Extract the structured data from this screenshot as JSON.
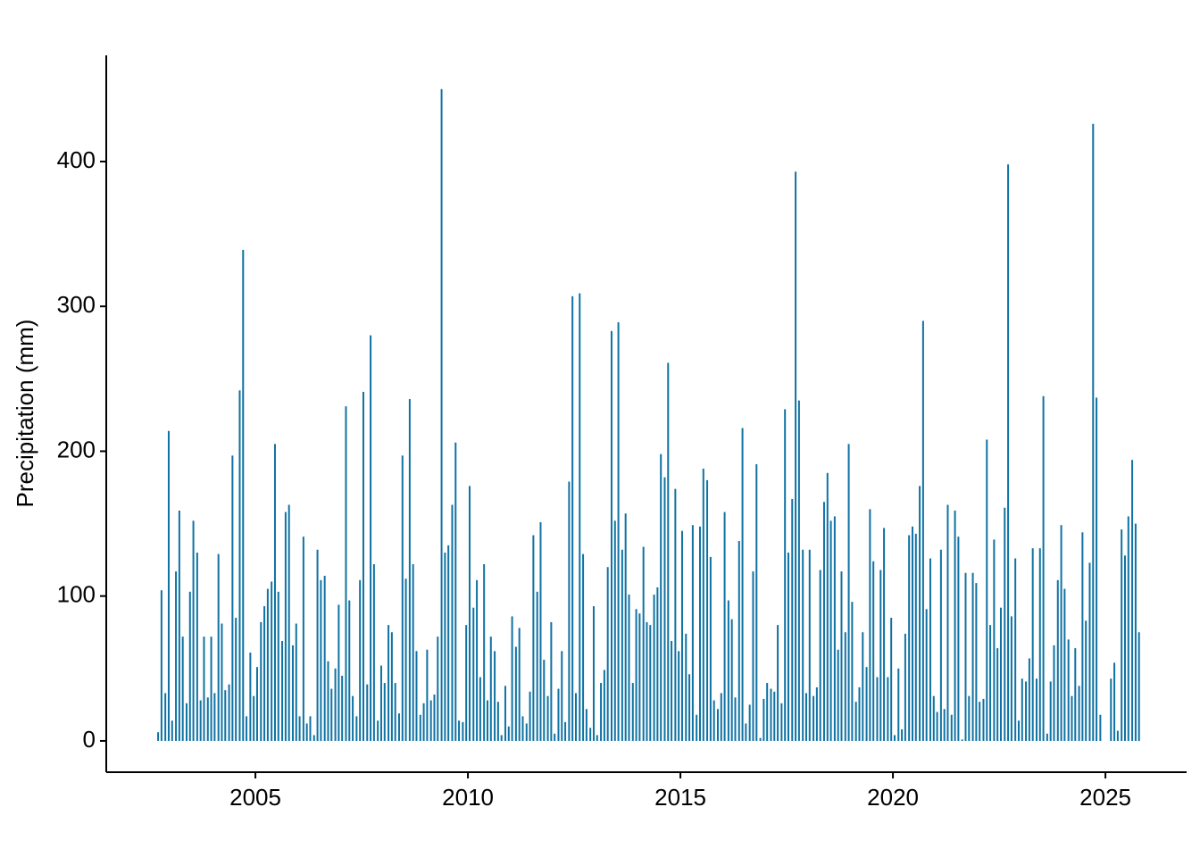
{
  "chart_data": {
    "type": "bar",
    "y_label": "Precipitation (mm)",
    "color": "#0f72a3",
    "xlim": [
      2001.49,
      2026.91
    ],
    "xticks": [
      2005,
      2010,
      2015,
      2020,
      2025
    ],
    "ylim": [
      -21.6,
      473.3
    ],
    "yticks": [
      0,
      100,
      200,
      300,
      400
    ],
    "grid": false,
    "x": [
      2002.71,
      2002.79,
      2002.88,
      2002.96,
      2003.04,
      2003.13,
      2003.21,
      2003.29,
      2003.38,
      2003.46,
      2003.54,
      2003.63,
      2003.71,
      2003.79,
      2003.88,
      2003.96,
      2004.04,
      2004.13,
      2004.21,
      2004.29,
      2004.38,
      2004.46,
      2004.54,
      2004.63,
      2004.71,
      2004.79,
      2004.88,
      2004.96,
      2005.04,
      2005.13,
      2005.21,
      2005.29,
      2005.38,
      2005.46,
      2005.54,
      2005.63,
      2005.71,
      2005.79,
      2005.88,
      2005.96,
      2006.04,
      2006.13,
      2006.21,
      2006.29,
      2006.38,
      2006.46,
      2006.54,
      2006.63,
      2006.71,
      2006.79,
      2006.88,
      2006.96,
      2007.04,
      2007.13,
      2007.21,
      2007.29,
      2007.38,
      2007.46,
      2007.54,
      2007.63,
      2007.71,
      2007.79,
      2007.88,
      2007.96,
      2008.04,
      2008.13,
      2008.21,
      2008.29,
      2008.38,
      2008.46,
      2008.54,
      2008.63,
      2008.71,
      2008.79,
      2008.88,
      2008.96,
      2009.04,
      2009.13,
      2009.21,
      2009.29,
      2009.38,
      2009.46,
      2009.54,
      2009.63,
      2009.71,
      2009.79,
      2009.88,
      2009.96,
      2010.04,
      2010.13,
      2010.21,
      2010.29,
      2010.38,
      2010.46,
      2010.54,
      2010.63,
      2010.71,
      2010.79,
      2010.88,
      2010.96,
      2011.04,
      2011.13,
      2011.21,
      2011.29,
      2011.38,
      2011.46,
      2011.54,
      2011.63,
      2011.71,
      2011.79,
      2011.88,
      2011.96,
      2012.04,
      2012.13,
      2012.21,
      2012.29,
      2012.38,
      2012.46,
      2012.54,
      2012.63,
      2012.71,
      2012.79,
      2012.88,
      2012.96,
      2013.04,
      2013.13,
      2013.21,
      2013.29,
      2013.38,
      2013.46,
      2013.54,
      2013.63,
      2013.71,
      2013.79,
      2013.88,
      2013.96,
      2014.04,
      2014.13,
      2014.21,
      2014.29,
      2014.38,
      2014.46,
      2014.54,
      2014.63,
      2014.71,
      2014.79,
      2014.88,
      2014.96,
      2015.04,
      2015.13,
      2015.21,
      2015.29,
      2015.38,
      2015.46,
      2015.54,
      2015.63,
      2015.71,
      2015.79,
      2015.88,
      2015.96,
      2016.04,
      2016.13,
      2016.21,
      2016.29,
      2016.38,
      2016.46,
      2016.54,
      2016.63,
      2016.71,
      2016.79,
      2016.88,
      2016.96,
      2017.04,
      2017.13,
      2017.21,
      2017.29,
      2017.38,
      2017.46,
      2017.54,
      2017.63,
      2017.71,
      2017.79,
      2017.88,
      2017.96,
      2018.04,
      2018.13,
      2018.21,
      2018.29,
      2018.38,
      2018.46,
      2018.54,
      2018.63,
      2018.71,
      2018.79,
      2018.88,
      2018.96,
      2019.04,
      2019.13,
      2019.21,
      2019.29,
      2019.38,
      2019.46,
      2019.54,
      2019.63,
      2019.71,
      2019.79,
      2019.88,
      2019.96,
      2020.04,
      2020.13,
      2020.21,
      2020.29,
      2020.38,
      2020.46,
      2020.54,
      2020.63,
      2020.71,
      2020.79,
      2020.88,
      2020.96,
      2021.04,
      2021.13,
      2021.21,
      2021.29,
      2021.38,
      2021.46,
      2021.54,
      2021.63,
      2021.71,
      2021.79,
      2021.88,
      2021.96,
      2022.04,
      2022.13,
      2022.21,
      2022.29,
      2022.38,
      2022.46,
      2022.54,
      2022.63,
      2022.71,
      2022.79,
      2022.88,
      2022.96,
      2023.04,
      2023.13,
      2023.21,
      2023.29,
      2023.38,
      2023.46,
      2023.54,
      2023.63,
      2023.71,
      2023.79,
      2023.88,
      2023.96,
      2024.04,
      2024.13,
      2024.21,
      2024.29,
      2024.38,
      2024.46,
      2024.54,
      2024.63,
      2024.71,
      2024.79,
      2024.88,
      2024.96,
      2025.04,
      2025.13,
      2025.21,
      2025.29,
      2025.38,
      2025.46,
      2025.54,
      2025.63,
      2025.71,
      2025.79
    ],
    "values": [
      6,
      104,
      33,
      214,
      14,
      117,
      159,
      72,
      26,
      103,
      152,
      130,
      28,
      72,
      30,
      72,
      33,
      129,
      81,
      35,
      39,
      197,
      85,
      242,
      339,
      17,
      61,
      31,
      51,
      82,
      93,
      105,
      110,
      205,
      103,
      69,
      158,
      163,
      66,
      81,
      17,
      141,
      12,
      17,
      4,
      132,
      111,
      114,
      55,
      36,
      50,
      94,
      45,
      231,
      97,
      31,
      17,
      111,
      241,
      39,
      280,
      122,
      14,
      52,
      40,
      80,
      75,
      40,
      19,
      197,
      112,
      236,
      122,
      62,
      18,
      26,
      63,
      28,
      32,
      72,
      450,
      130,
      135,
      163,
      206,
      14,
      13,
      80,
      176,
      92,
      111,
      44,
      122,
      28,
      72,
      62,
      27,
      4,
      38,
      10,
      86,
      65,
      78,
      17,
      12,
      34,
      142,
      103,
      151,
      56,
      31,
      82,
      5,
      36,
      62,
      13,
      179,
      307,
      33,
      309,
      129,
      22,
      9,
      93,
      4,
      40,
      49,
      120,
      283,
      152,
      289,
      132,
      157,
      101,
      40,
      91,
      88,
      134,
      82,
      80,
      101,
      106,
      198,
      182,
      261,
      69,
      174,
      62,
      145,
      74,
      46,
      149,
      18,
      148,
      188,
      180,
      127,
      28,
      22,
      33,
      158,
      97,
      84,
      30,
      138,
      216,
      12,
      25,
      117,
      191,
      2,
      29,
      40,
      36,
      34,
      80,
      26,
      229,
      130,
      167,
      393,
      235,
      132,
      33,
      132,
      31,
      37,
      118,
      165,
      185,
      152,
      155,
      63,
      117,
      75,
      205,
      96,
      27,
      37,
      75,
      51,
      160,
      124,
      44,
      118,
      147,
      44,
      85,
      4,
      50,
      8,
      74,
      142,
      148,
      143,
      176,
      290,
      91,
      126,
      31,
      20,
      132,
      22,
      163,
      18,
      159,
      141,
      1,
      116,
      31,
      116,
      109,
      27,
      29,
      208,
      80,
      139,
      64,
      92,
      161,
      398,
      86,
      126,
      14,
      43,
      41,
      57,
      133,
      43,
      133,
      238,
      5,
      41,
      66,
      111,
      149,
      105,
      70,
      31,
      64,
      38,
      144,
      83,
      123,
      426,
      237,
      18,
      null,
      null,
      43,
      54,
      7,
      146,
      128,
      155,
      194,
      150,
      75
    ]
  }
}
